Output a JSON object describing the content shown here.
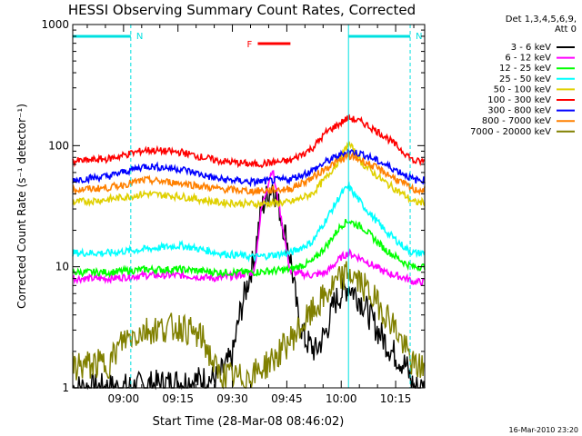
{
  "chart_data": {
    "type": "line",
    "title": "HESSI Observing Summary Count Rates, Corrected",
    "xlabel": "Start Time (28-Mar-08 08:46:02)",
    "ylabel": "Corrected Count Rate (s⁻¹ detector⁻¹)",
    "y_scale": "log",
    "ylim": [
      1,
      1000
    ],
    "xlim_minutes": [
      0,
      97
    ],
    "x_tick_labels": [
      "09:00",
      "09:15",
      "09:30",
      "09:45",
      "10:00",
      "10:15"
    ],
    "x_ticks_minutes": [
      14,
      29,
      44,
      59,
      74,
      89
    ],
    "y_tick_labels": [
      "1",
      "10",
      "100",
      "1000"
    ],
    "y_ticks": [
      1,
      10,
      100,
      1000
    ],
    "legend_header": [
      "Det 1,3,4,5,6,9,",
      "Att 0"
    ],
    "legend_position": "right, outside plot",
    "annotations": [
      {
        "label": "N",
        "color": "#00e0e0",
        "start_min": 0,
        "end_min": 16
      },
      {
        "label": "N",
        "color": "#00e0e0",
        "start_min": 76,
        "end_min": 93
      },
      {
        "label": "F",
        "color": "#ff0000",
        "start_min": 51,
        "end_min": 60
      }
    ],
    "vertical_markers_minutes": [
      16,
      76,
      93
    ],
    "footer_date": "16-Mar-2010 23:20",
    "series": [
      {
        "name": "3 - 6 keV",
        "color": "#000000",
        "values": [
          [
            0,
            1
          ],
          [
            14,
            1
          ],
          [
            40,
            1.2
          ],
          [
            44,
            1.8
          ],
          [
            46,
            4
          ],
          [
            50,
            12
          ],
          [
            52,
            30
          ],
          [
            55,
            48
          ],
          [
            57,
            30
          ],
          [
            60,
            12
          ],
          [
            62,
            4
          ],
          [
            64,
            2.5
          ],
          [
            67,
            2
          ],
          [
            70,
            3
          ],
          [
            72,
            5
          ],
          [
            74,
            6
          ],
          [
            76,
            7
          ],
          [
            78,
            6
          ],
          [
            80,
            5
          ],
          [
            84,
            3
          ],
          [
            88,
            2
          ],
          [
            92,
            1.5
          ],
          [
            93,
            1.2
          ],
          [
            94,
            1
          ]
        ]
      },
      {
        "name": "6 - 12 keV",
        "color": "#ff00ff",
        "values": [
          [
            0,
            8
          ],
          [
            10,
            8
          ],
          [
            20,
            8.5
          ],
          [
            30,
            8.5
          ],
          [
            40,
            8
          ],
          [
            50,
            9
          ],
          [
            52,
            30
          ],
          [
            55,
            65
          ],
          [
            57,
            30
          ],
          [
            60,
            9
          ],
          [
            66,
            8.5
          ],
          [
            70,
            9
          ],
          [
            74,
            12
          ],
          [
            76,
            13
          ],
          [
            80,
            11.5
          ],
          [
            86,
            9
          ],
          [
            92,
            8
          ],
          [
            94,
            7.5
          ]
        ]
      },
      {
        "name": "12 - 25 keV",
        "color": "#00ff00",
        "values": [
          [
            0,
            9
          ],
          [
            10,
            9
          ],
          [
            20,
            9.5
          ],
          [
            30,
            9.5
          ],
          [
            40,
            9
          ],
          [
            50,
            9
          ],
          [
            60,
            9.5
          ],
          [
            66,
            11
          ],
          [
            70,
            15
          ],
          [
            74,
            22
          ],
          [
            76,
            24
          ],
          [
            80,
            21
          ],
          [
            86,
            14
          ],
          [
            92,
            10.5
          ],
          [
            94,
            10
          ]
        ]
      },
      {
        "name": "25 - 50 keV",
        "color": "#00ffff",
        "values": [
          [
            0,
            13
          ],
          [
            10,
            13
          ],
          [
            20,
            14
          ],
          [
            30,
            15
          ],
          [
            40,
            13
          ],
          [
            50,
            12
          ],
          [
            60,
            13
          ],
          [
            66,
            16
          ],
          [
            70,
            25
          ],
          [
            74,
            40
          ],
          [
            76,
            46
          ],
          [
            80,
            32
          ],
          [
            86,
            20
          ],
          [
            92,
            14
          ],
          [
            94,
            13
          ]
        ]
      },
      {
        "name": "50 - 100 keV",
        "color": "#e0d000",
        "values": [
          [
            0,
            34
          ],
          [
            10,
            36
          ],
          [
            20,
            40
          ],
          [
            30,
            38
          ],
          [
            40,
            34
          ],
          [
            50,
            33
          ],
          [
            60,
            34
          ],
          [
            66,
            40
          ],
          [
            70,
            55
          ],
          [
            74,
            80
          ],
          [
            76,
            105
          ],
          [
            80,
            70
          ],
          [
            86,
            50
          ],
          [
            92,
            38
          ],
          [
            94,
            34
          ]
        ]
      },
      {
        "name": "100 - 300 keV",
        "color": "#ff0000",
        "values": [
          [
            0,
            74
          ],
          [
            10,
            78
          ],
          [
            20,
            92
          ],
          [
            30,
            88
          ],
          [
            40,
            75
          ],
          [
            50,
            70
          ],
          [
            60,
            75
          ],
          [
            66,
            95
          ],
          [
            70,
            130
          ],
          [
            76,
            170
          ],
          [
            80,
            155
          ],
          [
            86,
            120
          ],
          [
            92,
            85
          ],
          [
            94,
            74
          ]
        ]
      },
      {
        "name": "300 - 800 keV",
        "color": "#0000ff",
        "values": [
          [
            0,
            52
          ],
          [
            10,
            56
          ],
          [
            20,
            68
          ],
          [
            30,
            64
          ],
          [
            40,
            53
          ],
          [
            50,
            50
          ],
          [
            60,
            53
          ],
          [
            66,
            62
          ],
          [
            70,
            74
          ],
          [
            76,
            90
          ],
          [
            80,
            85
          ],
          [
            86,
            70
          ],
          [
            92,
            57
          ],
          [
            94,
            52
          ]
        ]
      },
      {
        "name": "800 - 7000 keV",
        "color": "#ff8000",
        "values": [
          [
            0,
            43
          ],
          [
            10,
            45
          ],
          [
            20,
            52
          ],
          [
            30,
            49
          ],
          [
            40,
            44
          ],
          [
            50,
            42
          ],
          [
            60,
            44
          ],
          [
            66,
            54
          ],
          [
            70,
            66
          ],
          [
            76,
            82
          ],
          [
            80,
            75
          ],
          [
            86,
            60
          ],
          [
            92,
            47
          ],
          [
            94,
            43
          ]
        ]
      },
      {
        "name": "7000 - 20000 keV",
        "color": "#808000",
        "values": [
          [
            0,
            1.5
          ],
          [
            10,
            1.6
          ],
          [
            14,
            2.5
          ],
          [
            20,
            3
          ],
          [
            30,
            3.2
          ],
          [
            36,
            2.5
          ],
          [
            40,
            1.3
          ],
          [
            46,
            1.2
          ],
          [
            50,
            1.3
          ],
          [
            56,
            1.8
          ],
          [
            60,
            2.5
          ],
          [
            64,
            3.5
          ],
          [
            68,
            5
          ],
          [
            72,
            7
          ],
          [
            76,
            9
          ],
          [
            80,
            7
          ],
          [
            84,
            5
          ],
          [
            88,
            3.5
          ],
          [
            92,
            2
          ],
          [
            94,
            1.5
          ]
        ]
      }
    ]
  }
}
